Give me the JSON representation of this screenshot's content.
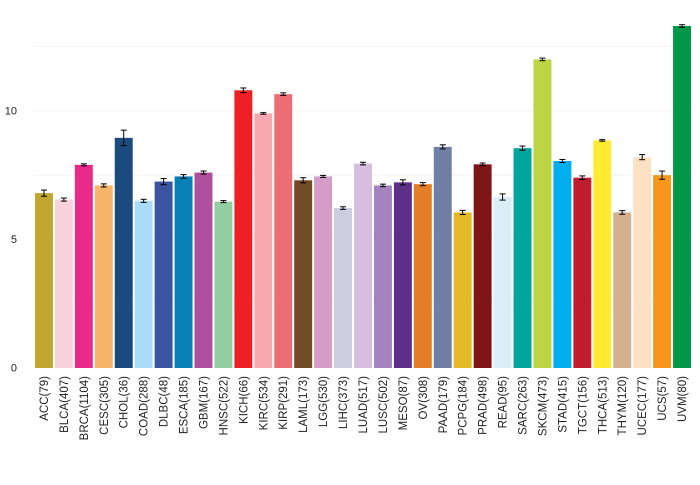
{
  "chart_data": {
    "type": "bar",
    "title": "",
    "xlabel": "",
    "ylabel": "",
    "ylim": [
      0,
      13.3
    ],
    "yticks": [
      0,
      5,
      10
    ],
    "ytick_labels": [
      "0",
      "5",
      "10"
    ],
    "grid": true,
    "error_bars": true,
    "categories": [
      "ACC(79)",
      "BLCA(407)",
      "BRCA(1104)",
      "CESC(305)",
      "CHOL(36)",
      "COAD(288)",
      "DLBC(48)",
      "ESCA(185)",
      "GBM(167)",
      "HNSC(522)",
      "KICH(66)",
      "KIRC(534)",
      "KIRP(291)",
      "LAML(173)",
      "LGG(530)",
      "LIHC(373)",
      "LUAD(517)",
      "LUSC(502)",
      "MESO(87)",
      "OV(308)",
      "PAAD(179)",
      "PCPG(184)",
      "PRAD(498)",
      "READ(95)",
      "SARC(263)",
      "SKCM(473)",
      "STAD(415)",
      "TGCT(156)",
      "THCA(513)",
      "THYM(120)",
      "UCEC(177)",
      "UCS(57)",
      "UVM(80)"
    ],
    "values": [
      6.8,
      6.55,
      7.9,
      7.1,
      8.95,
      6.5,
      7.25,
      7.45,
      7.6,
      6.47,
      10.8,
      9.9,
      10.65,
      7.3,
      7.45,
      6.22,
      7.95,
      7.1,
      7.22,
      7.15,
      8.6,
      6.05,
      7.92,
      6.65,
      8.55,
      12.0,
      8.05,
      7.4,
      8.85,
      6.05,
      8.2,
      7.5,
      13.3
    ],
    "errors": [
      0.12,
      0.06,
      0.04,
      0.06,
      0.3,
      0.06,
      0.12,
      0.07,
      0.06,
      0.04,
      0.09,
      0.03,
      0.05,
      0.1,
      0.04,
      0.05,
      0.05,
      0.05,
      0.1,
      0.06,
      0.08,
      0.08,
      0.05,
      0.12,
      0.08,
      0.05,
      0.06,
      0.07,
      0.03,
      0.07,
      0.1,
      0.16,
      0.05
    ],
    "colors": [
      "#C1A62F",
      "#F9D3DC",
      "#EA2A8B",
      "#F7B56B",
      "#1A4A7E",
      "#A8DCF8",
      "#3B54A1",
      "#0A7FB5",
      "#B04F9D",
      "#93CFA3",
      "#EE1F25",
      "#F6A9AE",
      "#EC6E74",
      "#714A26",
      "#D49DC8",
      "#CCCEDF",
      "#D6BFDE",
      "#A483BF",
      "#5D2F88",
      "#E27E27",
      "#727FA4",
      "#E3BA26",
      "#7E1517",
      "#DAEEF7",
      "#00A59B",
      "#BDD544",
      "#00AEEF",
      "#BE1E2D",
      "#FFEC32",
      "#D3B090",
      "#FCE1C4",
      "#F8971D",
      "#009746"
    ]
  }
}
